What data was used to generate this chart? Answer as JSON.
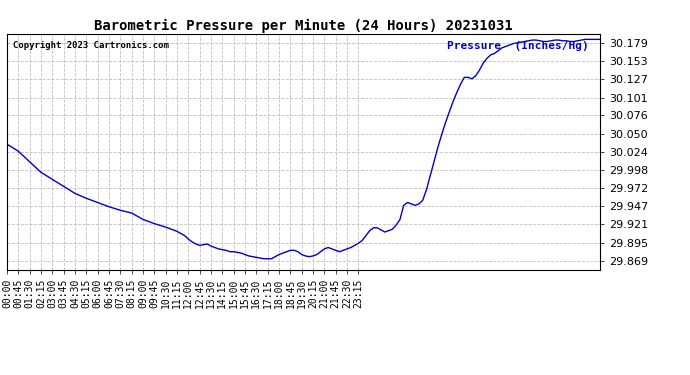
{
  "title": "Barometric Pressure per Minute (24 Hours) 20231031",
  "copyright": "Copyright 2023 Cartronics.com",
  "legend_label": "Pressure  (Inches/Hg)",
  "line_color": "#0000cc",
  "background_color": "#ffffff",
  "grid_color": "#c0c0c0",
  "yticks": [
    29.869,
    29.895,
    29.921,
    29.947,
    29.972,
    29.998,
    30.024,
    30.05,
    30.076,
    30.101,
    30.127,
    30.153,
    30.179
  ],
  "ymin": 29.856,
  "ymax": 30.192,
  "xtick_labels": [
    "00:00",
    "00:45",
    "01:30",
    "02:15",
    "03:00",
    "03:45",
    "04:30",
    "05:15",
    "06:00",
    "06:45",
    "07:30",
    "08:15",
    "09:00",
    "09:45",
    "10:30",
    "11:15",
    "12:00",
    "12:45",
    "13:30",
    "14:15",
    "15:00",
    "15:45",
    "16:30",
    "17:15",
    "18:00",
    "18:45",
    "19:30",
    "20:15",
    "21:00",
    "21:45",
    "22:30",
    "23:15"
  ],
  "curve": [
    [
      0,
      30.035
    ],
    [
      45,
      30.025
    ],
    [
      90,
      30.01
    ],
    [
      135,
      29.995
    ],
    [
      180,
      29.985
    ],
    [
      225,
      29.975
    ],
    [
      270,
      29.965
    ],
    [
      315,
      29.958
    ],
    [
      360,
      29.952
    ],
    [
      405,
      29.946
    ],
    [
      450,
      29.941
    ],
    [
      495,
      29.937
    ],
    [
      540,
      29.928
    ],
    [
      585,
      29.922
    ],
    [
      630,
      29.917
    ],
    [
      660,
      29.913
    ],
    [
      675,
      29.911
    ],
    [
      690,
      29.908
    ],
    [
      705,
      29.905
    ],
    [
      720,
      29.9
    ],
    [
      735,
      29.896
    ],
    [
      750,
      29.893
    ],
    [
      765,
      29.891
    ],
    [
      780,
      29.892
    ],
    [
      795,
      29.893
    ],
    [
      810,
      29.89
    ],
    [
      825,
      29.888
    ],
    [
      840,
      29.886
    ],
    [
      855,
      29.885
    ],
    [
      870,
      29.884
    ],
    [
      885,
      29.882
    ],
    [
      900,
      29.882
    ],
    [
      930,
      29.88
    ],
    [
      945,
      29.878
    ],
    [
      960,
      29.876
    ],
    [
      975,
      29.875
    ],
    [
      990,
      29.874
    ],
    [
      1005,
      29.873
    ],
    [
      1020,
      29.872
    ],
    [
      1035,
      29.872
    ],
    [
      1050,
      29.872
    ],
    [
      1065,
      29.875
    ],
    [
      1080,
      29.878
    ],
    [
      1095,
      29.88
    ],
    [
      1110,
      29.882
    ],
    [
      1125,
      29.884
    ],
    [
      1140,
      29.884
    ],
    [
      1155,
      29.882
    ],
    [
      1170,
      29.878
    ],
    [
      1185,
      29.876
    ],
    [
      1200,
      29.875
    ],
    [
      1215,
      29.876
    ],
    [
      1230,
      29.878
    ],
    [
      1245,
      29.882
    ],
    [
      1260,
      29.886
    ],
    [
      1275,
      29.888
    ],
    [
      1290,
      29.886
    ],
    [
      1305,
      29.884
    ],
    [
      1320,
      29.882
    ],
    [
      1335,
      29.884
    ],
    [
      1350,
      29.886
    ],
    [
      1365,
      29.888
    ],
    [
      1380,
      29.891
    ],
    [
      1395,
      29.894
    ],
    [
      1410,
      29.898
    ],
    [
      1425,
      29.905
    ],
    [
      1440,
      29.912
    ],
    [
      1455,
      29.916
    ],
    [
      1470,
      29.916
    ],
    [
      1485,
      29.913
    ],
    [
      1500,
      29.91
    ],
    [
      1515,
      29.912
    ],
    [
      1530,
      29.914
    ],
    [
      1545,
      29.92
    ],
    [
      1560,
      29.928
    ],
    [
      1575,
      29.948
    ],
    [
      1590,
      29.952
    ],
    [
      1605,
      29.95
    ],
    [
      1620,
      29.948
    ],
    [
      1635,
      29.95
    ],
    [
      1650,
      29.955
    ],
    [
      1665,
      29.97
    ],
    [
      1680,
      29.99
    ],
    [
      1695,
      30.01
    ],
    [
      1710,
      30.03
    ],
    [
      1725,
      30.048
    ],
    [
      1740,
      30.065
    ],
    [
      1755,
      30.08
    ],
    [
      1770,
      30.095
    ],
    [
      1785,
      30.108
    ],
    [
      1800,
      30.12
    ],
    [
      1815,
      30.13
    ],
    [
      1830,
      30.13
    ],
    [
      1845,
      30.128
    ],
    [
      1860,
      30.132
    ],
    [
      1875,
      30.14
    ],
    [
      1890,
      30.15
    ],
    [
      1905,
      30.157
    ],
    [
      1920,
      30.162
    ],
    [
      1935,
      30.164
    ],
    [
      1950,
      30.168
    ],
    [
      1965,
      30.172
    ],
    [
      1980,
      30.174
    ],
    [
      1995,
      30.176
    ],
    [
      2010,
      30.178
    ],
    [
      2025,
      30.179
    ],
    [
      2040,
      30.18
    ],
    [
      2055,
      30.181
    ],
    [
      2070,
      30.182
    ],
    [
      2085,
      30.183
    ],
    [
      2100,
      30.183
    ],
    [
      2115,
      30.182
    ],
    [
      2130,
      30.181
    ],
    [
      2145,
      30.181
    ],
    [
      2160,
      30.182
    ],
    [
      2175,
      30.183
    ],
    [
      2190,
      30.183
    ],
    [
      2205,
      30.182
    ],
    [
      2220,
      30.182
    ],
    [
      2235,
      30.181
    ],
    [
      2250,
      30.181
    ],
    [
      2265,
      30.182
    ],
    [
      2280,
      30.183
    ],
    [
      2295,
      30.184
    ],
    [
      2310,
      30.184
    ],
    [
      2325,
      30.184
    ],
    [
      2340,
      30.184
    ],
    [
      2355,
      30.184
    ]
  ]
}
